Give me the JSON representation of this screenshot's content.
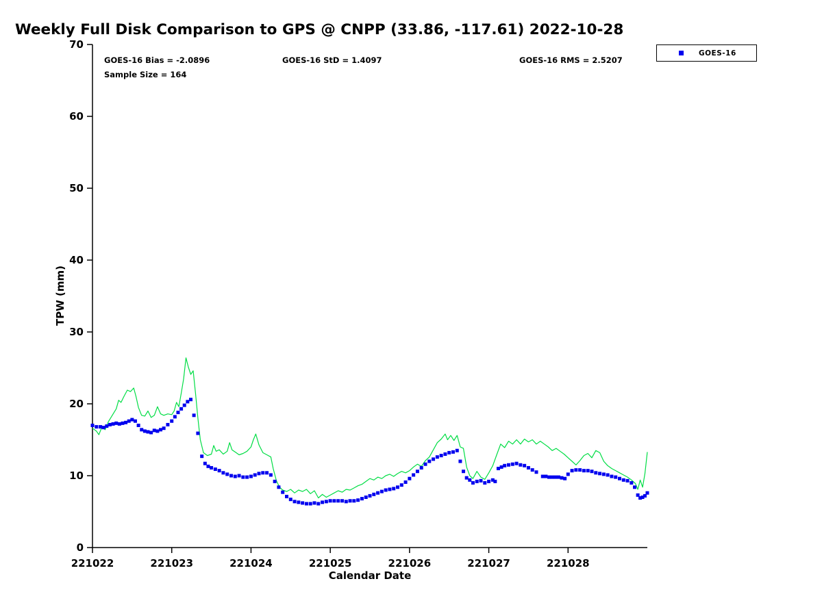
{
  "title": "Weekly Full Disk Comparison to GPS @ CNPP (33.86, -117.61) 2022-10-28",
  "stats": {
    "bias": "GOES-16 Bias = -2.0896",
    "std": "GOES-16 StD = 1.4097",
    "rms": "GOES-16 RMS = 2.5207",
    "sample_size": "Sample Size = 164"
  },
  "legend": {
    "entries": [
      {
        "label": "GOES-16",
        "marker": "square",
        "marker_color": "#0000ee"
      }
    ],
    "position": "top-right-outside"
  },
  "chart_data": {
    "type": "line",
    "title": "Weekly Full Disk Comparison to GPS @ CNPP (33.86, -117.61) 2022-10-28",
    "xlabel": "Calendar Date",
    "ylabel": "TPW (mm)",
    "xlim": [
      0,
      7.0
    ],
    "ylim": [
      0,
      70
    ],
    "grid": false,
    "yticks": [
      0,
      10,
      20,
      30,
      40,
      50,
      60,
      70
    ],
    "xtick_positions": [
      0,
      1,
      2,
      3,
      4,
      5,
      6
    ],
    "xtick_labels": [
      "221022",
      "221023",
      "221024",
      "221025",
      "221026",
      "221027",
      "221028"
    ],
    "series": [
      {
        "name": "GPS",
        "type": "line",
        "color": "#00dd44",
        "points": [
          [
            0,
            16.6
          ],
          [
            0.05,
            16.2
          ],
          [
            0.08,
            15.7
          ],
          [
            0.12,
            16.8
          ],
          [
            0.16,
            16.4
          ],
          [
            0.2,
            17.5
          ],
          [
            0.25,
            18.4
          ],
          [
            0.3,
            19.3
          ],
          [
            0.33,
            20.5
          ],
          [
            0.36,
            20.2
          ],
          [
            0.4,
            21.1
          ],
          [
            0.44,
            21.9
          ],
          [
            0.48,
            21.7
          ],
          [
            0.52,
            22.2
          ],
          [
            0.55,
            21.0
          ],
          [
            0.58,
            19.5
          ],
          [
            0.62,
            18.4
          ],
          [
            0.66,
            18.3
          ],
          [
            0.7,
            19.0
          ],
          [
            0.74,
            18.1
          ],
          [
            0.78,
            18.4
          ],
          [
            0.82,
            19.6
          ],
          [
            0.86,
            18.6
          ],
          [
            0.9,
            18.4
          ],
          [
            0.95,
            18.6
          ],
          [
            1.0,
            18.5
          ],
          [
            1.03,
            19.0
          ],
          [
            1.06,
            20.2
          ],
          [
            1.09,
            19.6
          ],
          [
            1.12,
            21.5
          ],
          [
            1.15,
            23.5
          ],
          [
            1.18,
            26.4
          ],
          [
            1.21,
            25.1
          ],
          [
            1.24,
            24.1
          ],
          [
            1.27,
            24.6
          ],
          [
            1.3,
            21.5
          ],
          [
            1.33,
            18.0
          ],
          [
            1.36,
            15.0
          ],
          [
            1.4,
            13.2
          ],
          [
            1.45,
            12.8
          ],
          [
            1.5,
            13.0
          ],
          [
            1.53,
            14.2
          ],
          [
            1.56,
            13.4
          ],
          [
            1.6,
            13.6
          ],
          [
            1.65,
            13.0
          ],
          [
            1.7,
            13.4
          ],
          [
            1.73,
            14.6
          ],
          [
            1.76,
            13.6
          ],
          [
            1.8,
            13.3
          ],
          [
            1.85,
            12.9
          ],
          [
            1.9,
            13.1
          ],
          [
            1.95,
            13.4
          ],
          [
            2.0,
            14.0
          ],
          [
            2.03,
            15.0
          ],
          [
            2.06,
            15.8
          ],
          [
            2.1,
            14.3
          ],
          [
            2.15,
            13.2
          ],
          [
            2.2,
            12.9
          ],
          [
            2.25,
            12.6
          ],
          [
            2.28,
            11.0
          ],
          [
            2.32,
            9.3
          ],
          [
            2.36,
            8.4
          ],
          [
            2.4,
            8.0
          ],
          [
            2.45,
            7.8
          ],
          [
            2.5,
            8.1
          ],
          [
            2.55,
            7.6
          ],
          [
            2.6,
            8.0
          ],
          [
            2.65,
            7.8
          ],
          [
            2.7,
            8.1
          ],
          [
            2.75,
            7.5
          ],
          [
            2.8,
            7.9
          ],
          [
            2.85,
            6.9
          ],
          [
            2.9,
            7.4
          ],
          [
            2.95,
            7.0
          ],
          [
            3.0,
            7.3
          ],
          [
            3.05,
            7.6
          ],
          [
            3.1,
            7.9
          ],
          [
            3.15,
            7.7
          ],
          [
            3.2,
            8.1
          ],
          [
            3.25,
            8.0
          ],
          [
            3.3,
            8.3
          ],
          [
            3.35,
            8.6
          ],
          [
            3.4,
            8.8
          ],
          [
            3.45,
            9.2
          ],
          [
            3.5,
            9.6
          ],
          [
            3.55,
            9.4
          ],
          [
            3.6,
            9.8
          ],
          [
            3.65,
            9.6
          ],
          [
            3.7,
            10.0
          ],
          [
            3.75,
            10.2
          ],
          [
            3.8,
            9.9
          ],
          [
            3.85,
            10.3
          ],
          [
            3.9,
            10.6
          ],
          [
            3.95,
            10.4
          ],
          [
            4.0,
            10.7
          ],
          [
            4.05,
            11.2
          ],
          [
            4.1,
            11.6
          ],
          [
            4.15,
            11.3
          ],
          [
            4.2,
            12.1
          ],
          [
            4.25,
            12.6
          ],
          [
            4.3,
            13.6
          ],
          [
            4.35,
            14.6
          ],
          [
            4.4,
            15.1
          ],
          [
            4.45,
            15.8
          ],
          [
            4.48,
            15.0
          ],
          [
            4.52,
            15.6
          ],
          [
            4.56,
            14.9
          ],
          [
            4.6,
            15.6
          ],
          [
            4.64,
            14.0
          ],
          [
            4.68,
            13.8
          ],
          [
            4.72,
            11.2
          ],
          [
            4.76,
            10.0
          ],
          [
            4.8,
            9.6
          ],
          [
            4.85,
            10.6
          ],
          [
            4.9,
            9.8
          ],
          [
            4.95,
            9.5
          ],
          [
            5.0,
            10.4
          ],
          [
            5.05,
            11.4
          ],
          [
            5.1,
            12.9
          ],
          [
            5.15,
            14.4
          ],
          [
            5.2,
            13.9
          ],
          [
            5.25,
            14.8
          ],
          [
            5.3,
            14.4
          ],
          [
            5.35,
            15.0
          ],
          [
            5.4,
            14.4
          ],
          [
            5.45,
            15.1
          ],
          [
            5.5,
            14.7
          ],
          [
            5.55,
            15.0
          ],
          [
            5.6,
            14.4
          ],
          [
            5.65,
            14.8
          ],
          [
            5.7,
            14.4
          ],
          [
            5.75,
            14.0
          ],
          [
            5.8,
            13.5
          ],
          [
            5.85,
            13.8
          ],
          [
            5.9,
            13.4
          ],
          [
            5.95,
            13.0
          ],
          [
            6.0,
            12.5
          ],
          [
            6.05,
            12.0
          ],
          [
            6.1,
            11.5
          ],
          [
            6.15,
            12.1
          ],
          [
            6.2,
            12.8
          ],
          [
            6.25,
            13.1
          ],
          [
            6.3,
            12.5
          ],
          [
            6.35,
            13.5
          ],
          [
            6.4,
            13.2
          ],
          [
            6.45,
            12.0
          ],
          [
            6.5,
            11.4
          ],
          [
            6.55,
            11.0
          ],
          [
            6.6,
            10.7
          ],
          [
            6.65,
            10.4
          ],
          [
            6.7,
            10.1
          ],
          [
            6.75,
            9.8
          ],
          [
            6.8,
            9.4
          ],
          [
            6.85,
            8.9
          ],
          [
            6.88,
            8.1
          ],
          [
            6.91,
            9.4
          ],
          [
            6.94,
            8.4
          ],
          [
            6.97,
            10.3
          ],
          [
            7.0,
            13.3
          ]
        ]
      },
      {
        "name": "GOES-16",
        "type": "scatter",
        "marker": "square",
        "color": "#0000ee",
        "points": [
          [
            0,
            17.0
          ],
          [
            0.05,
            16.8
          ],
          [
            0.1,
            16.8
          ],
          [
            0.14,
            16.7
          ],
          [
            0.18,
            16.9
          ],
          [
            0.22,
            17.1
          ],
          [
            0.26,
            17.2
          ],
          [
            0.3,
            17.3
          ],
          [
            0.34,
            17.2
          ],
          [
            0.38,
            17.3
          ],
          [
            0.42,
            17.4
          ],
          [
            0.46,
            17.6
          ],
          [
            0.5,
            17.8
          ],
          [
            0.54,
            17.6
          ],
          [
            0.58,
            17.0
          ],
          [
            0.62,
            16.4
          ],
          [
            0.66,
            16.2
          ],
          [
            0.7,
            16.1
          ],
          [
            0.74,
            16.0
          ],
          [
            0.78,
            16.3
          ],
          [
            0.82,
            16.2
          ],
          [
            0.86,
            16.4
          ],
          [
            0.9,
            16.6
          ],
          [
            0.95,
            17.1
          ],
          [
            1.0,
            17.6
          ],
          [
            1.04,
            18.2
          ],
          [
            1.08,
            18.8
          ],
          [
            1.12,
            19.3
          ],
          [
            1.16,
            19.8
          ],
          [
            1.2,
            20.3
          ],
          [
            1.24,
            20.6
          ],
          [
            1.28,
            18.4
          ],
          [
            1.33,
            15.9
          ],
          [
            1.38,
            12.7
          ],
          [
            1.42,
            11.7
          ],
          [
            1.46,
            11.3
          ],
          [
            1.5,
            11.1
          ],
          [
            1.55,
            10.9
          ],
          [
            1.6,
            10.7
          ],
          [
            1.65,
            10.4
          ],
          [
            1.7,
            10.2
          ],
          [
            1.75,
            10.0
          ],
          [
            1.8,
            9.9
          ],
          [
            1.85,
            10.0
          ],
          [
            1.9,
            9.8
          ],
          [
            1.95,
            9.8
          ],
          [
            2.0,
            9.9
          ],
          [
            2.05,
            10.1
          ],
          [
            2.1,
            10.3
          ],
          [
            2.15,
            10.4
          ],
          [
            2.2,
            10.4
          ],
          [
            2.25,
            10.1
          ],
          [
            2.3,
            9.2
          ],
          [
            2.35,
            8.4
          ],
          [
            2.4,
            7.7
          ],
          [
            2.45,
            7.1
          ],
          [
            2.5,
            6.7
          ],
          [
            2.55,
            6.4
          ],
          [
            2.6,
            6.3
          ],
          [
            2.65,
            6.2
          ],
          [
            2.7,
            6.1
          ],
          [
            2.75,
            6.1
          ],
          [
            2.8,
            6.2
          ],
          [
            2.85,
            6.1
          ],
          [
            2.9,
            6.3
          ],
          [
            2.95,
            6.4
          ],
          [
            3.0,
            6.5
          ],
          [
            3.05,
            6.5
          ],
          [
            3.1,
            6.5
          ],
          [
            3.15,
            6.5
          ],
          [
            3.2,
            6.4
          ],
          [
            3.25,
            6.5
          ],
          [
            3.3,
            6.5
          ],
          [
            3.35,
            6.6
          ],
          [
            3.4,
            6.8
          ],
          [
            3.45,
            7.0
          ],
          [
            3.5,
            7.2
          ],
          [
            3.55,
            7.4
          ],
          [
            3.6,
            7.6
          ],
          [
            3.65,
            7.8
          ],
          [
            3.7,
            8.0
          ],
          [
            3.75,
            8.1
          ],
          [
            3.8,
            8.2
          ],
          [
            3.85,
            8.4
          ],
          [
            3.9,
            8.7
          ],
          [
            3.95,
            9.1
          ],
          [
            4.0,
            9.6
          ],
          [
            4.05,
            10.1
          ],
          [
            4.1,
            10.6
          ],
          [
            4.15,
            11.1
          ],
          [
            4.2,
            11.6
          ],
          [
            4.25,
            12.0
          ],
          [
            4.3,
            12.3
          ],
          [
            4.35,
            12.6
          ],
          [
            4.4,
            12.8
          ],
          [
            4.45,
            13.0
          ],
          [
            4.5,
            13.2
          ],
          [
            4.55,
            13.3
          ],
          [
            4.6,
            13.5
          ],
          [
            4.64,
            12.0
          ],
          [
            4.68,
            10.6
          ],
          [
            4.72,
            9.7
          ],
          [
            4.76,
            9.4
          ],
          [
            4.8,
            9.0
          ],
          [
            4.85,
            9.2
          ],
          [
            4.9,
            9.3
          ],
          [
            4.95,
            9.0
          ],
          [
            5.0,
            9.2
          ],
          [
            5.05,
            9.4
          ],
          [
            5.08,
            9.2
          ],
          [
            5.12,
            11.0
          ],
          [
            5.16,
            11.2
          ],
          [
            5.2,
            11.4
          ],
          [
            5.25,
            11.5
          ],
          [
            5.3,
            11.6
          ],
          [
            5.35,
            11.7
          ],
          [
            5.4,
            11.5
          ],
          [
            5.45,
            11.4
          ],
          [
            5.5,
            11.1
          ],
          [
            5.55,
            10.8
          ],
          [
            5.6,
            10.5
          ],
          [
            5.68,
            9.9
          ],
          [
            5.72,
            9.9
          ],
          [
            5.76,
            9.8
          ],
          [
            5.8,
            9.8
          ],
          [
            5.84,
            9.8
          ],
          [
            5.88,
            9.8
          ],
          [
            5.92,
            9.7
          ],
          [
            5.96,
            9.6
          ],
          [
            6.0,
            10.2
          ],
          [
            6.05,
            10.7
          ],
          [
            6.1,
            10.8
          ],
          [
            6.15,
            10.8
          ],
          [
            6.2,
            10.7
          ],
          [
            6.25,
            10.7
          ],
          [
            6.3,
            10.6
          ],
          [
            6.35,
            10.4
          ],
          [
            6.4,
            10.3
          ],
          [
            6.45,
            10.2
          ],
          [
            6.5,
            10.1
          ],
          [
            6.55,
            9.9
          ],
          [
            6.6,
            9.8
          ],
          [
            6.65,
            9.6
          ],
          [
            6.7,
            9.4
          ],
          [
            6.75,
            9.3
          ],
          [
            6.8,
            9.0
          ],
          [
            6.84,
            8.4
          ],
          [
            6.88,
            7.3
          ],
          [
            6.91,
            6.9
          ],
          [
            6.94,
            7.0
          ],
          [
            6.97,
            7.2
          ],
          [
            7.0,
            7.6
          ]
        ]
      }
    ]
  }
}
